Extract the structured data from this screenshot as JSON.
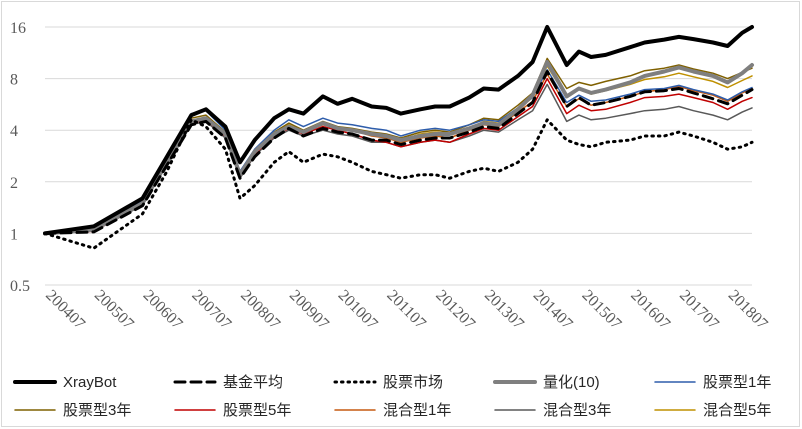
{
  "chart_data": {
    "type": "line",
    "title": "",
    "xlabel": "",
    "ylabel": "",
    "y_scale": "log2",
    "ylim": [
      0.5,
      16
    ],
    "y_ticks": [
      0.5,
      1,
      2,
      4,
      8,
      16
    ],
    "y_tick_labels": [
      "0.5",
      "1",
      "2",
      "4",
      "8",
      "16"
    ],
    "x_range": [
      2004.5,
      2019.0
    ],
    "x_tick_labels": [
      "200407",
      "200507",
      "200607",
      "200707",
      "200807",
      "200907",
      "201007",
      "201107",
      "201207",
      "201307",
      "201407",
      "201507",
      "201607",
      "201707",
      "201807"
    ],
    "x_tick_values": [
      2004.5,
      2005.5,
      2006.5,
      2007.5,
      2008.5,
      2009.5,
      2010.5,
      2011.5,
      2012.5,
      2013.5,
      2014.5,
      2015.5,
      2016.5,
      2017.5,
      2018.5
    ],
    "grid": "horizontal",
    "legend_position": "bottom",
    "x": [
      2004.5,
      2005.5,
      2006.5,
      2007.0,
      2007.5,
      2007.8,
      2008.2,
      2008.5,
      2008.8,
      2009.2,
      2009.5,
      2009.8,
      2010.2,
      2010.5,
      2010.8,
      2011.2,
      2011.5,
      2011.8,
      2012.2,
      2012.5,
      2012.8,
      2013.2,
      2013.5,
      2013.8,
      2014.2,
      2014.5,
      2014.8,
      2015.2,
      2015.45,
      2015.7,
      2016.0,
      2016.5,
      2016.8,
      2017.2,
      2017.5,
      2017.8,
      2018.2,
      2018.5,
      2018.8,
      2019.0
    ],
    "series": [
      {
        "name": "XrayBot",
        "color": "#000000",
        "width": 4,
        "dash": "",
        "values": [
          1.0,
          1.1,
          1.6,
          2.8,
          4.9,
          5.3,
          4.2,
          2.6,
          3.5,
          4.7,
          5.3,
          5.0,
          6.3,
          5.7,
          6.1,
          5.5,
          5.4,
          5.0,
          5.3,
          5.5,
          5.5,
          6.2,
          7.0,
          6.9,
          8.3,
          10.0,
          16.0,
          9.6,
          11.5,
          10.7,
          11.0,
          12.2,
          13.0,
          13.5,
          14.0,
          13.6,
          13.0,
          12.4,
          14.8,
          16.0
        ]
      },
      {
        "name": "基金平均",
        "color": "#000000",
        "width": 3,
        "dash": "10,6",
        "values": [
          1.0,
          1.02,
          1.45,
          2.5,
          4.3,
          4.5,
          3.6,
          2.1,
          2.8,
          3.6,
          4.1,
          3.7,
          4.1,
          3.9,
          3.8,
          3.5,
          3.5,
          3.3,
          3.5,
          3.6,
          3.6,
          3.9,
          4.2,
          4.1,
          5.0,
          5.8,
          8.8,
          5.5,
          6.2,
          5.6,
          5.8,
          6.3,
          6.7,
          6.8,
          7.0,
          6.6,
          6.1,
          5.7,
          6.4,
          6.9
        ]
      },
      {
        "name": "股票市场",
        "color": "#000000",
        "width": 3,
        "dash": "1.5,5",
        "values": [
          1.0,
          0.82,
          1.3,
          2.3,
          4.6,
          4.2,
          3.1,
          1.6,
          1.9,
          2.6,
          3.0,
          2.6,
          2.9,
          2.8,
          2.6,
          2.3,
          2.2,
          2.1,
          2.2,
          2.2,
          2.1,
          2.3,
          2.4,
          2.3,
          2.6,
          3.1,
          4.6,
          3.5,
          3.3,
          3.2,
          3.4,
          3.5,
          3.7,
          3.7,
          3.9,
          3.7,
          3.4,
          3.1,
          3.2,
          3.4
        ]
      },
      {
        "name": "量化(10)",
        "color": "#7f7f7f",
        "width": 4,
        "dash": "",
        "values": [
          1.0,
          1.05,
          1.5,
          2.6,
          4.5,
          4.7,
          3.8,
          2.2,
          3.0,
          3.8,
          4.2,
          3.9,
          4.4,
          4.1,
          4.0,
          3.8,
          3.7,
          3.5,
          3.7,
          3.8,
          3.8,
          4.1,
          4.4,
          4.3,
          5.3,
          6.4,
          10.0,
          6.3,
          7.0,
          6.6,
          6.9,
          7.6,
          8.3,
          8.8,
          9.3,
          8.8,
          8.3,
          7.6,
          8.6,
          9.6
        ]
      },
      {
        "name": "股票型1年",
        "color": "#2e5dab",
        "width": 1.5,
        "dash": "",
        "values": [
          1.0,
          1.06,
          1.55,
          2.7,
          5.0,
          5.2,
          4.0,
          2.3,
          3.1,
          4.0,
          4.6,
          4.2,
          4.7,
          4.4,
          4.3,
          4.1,
          4.0,
          3.7,
          4.0,
          4.1,
          4.0,
          4.3,
          4.6,
          4.5,
          5.4,
          6.2,
          9.0,
          5.8,
          6.4,
          5.9,
          6.0,
          6.5,
          6.9,
          7.0,
          7.3,
          6.9,
          6.5,
          6.0,
          6.7,
          7.1
        ]
      },
      {
        "name": "股票型3年",
        "color": "#7f6000",
        "width": 1.5,
        "dash": "",
        "values": [
          1.0,
          1.05,
          1.52,
          2.65,
          4.7,
          4.9,
          3.9,
          2.25,
          3.0,
          3.9,
          4.4,
          4.0,
          4.5,
          4.2,
          4.1,
          3.9,
          3.8,
          3.6,
          3.9,
          4.0,
          3.9,
          4.3,
          4.7,
          4.6,
          5.6,
          6.6,
          10.5,
          7.0,
          7.6,
          7.3,
          7.7,
          8.3,
          8.9,
          9.2,
          9.6,
          9.1,
          8.6,
          8.0,
          8.7,
          9.2
        ]
      },
      {
        "name": "股票型5年",
        "color": "#c00000",
        "width": 1.5,
        "dash": "",
        "values": [
          1.0,
          1.03,
          1.48,
          2.55,
          4.4,
          4.6,
          3.7,
          2.15,
          2.9,
          3.7,
          4.1,
          3.8,
          4.2,
          4.0,
          3.8,
          3.5,
          3.4,
          3.2,
          3.4,
          3.5,
          3.4,
          3.8,
          4.1,
          4.0,
          4.8,
          5.5,
          8.0,
          5.0,
          5.6,
          5.2,
          5.3,
          5.8,
          6.2,
          6.3,
          6.5,
          6.2,
          5.8,
          5.3,
          5.9,
          6.2
        ]
      },
      {
        "name": "混合型1年",
        "color": "#c55a11",
        "width": 1.5,
        "dash": "",
        "values": [
          1.0,
          1.04,
          1.5,
          2.6,
          4.5,
          4.7,
          3.8,
          2.2,
          3.0,
          3.8,
          4.2,
          3.9,
          4.3,
          4.1,
          4.0,
          3.7,
          3.6,
          3.4,
          3.6,
          3.7,
          3.6,
          4.0,
          4.3,
          4.2,
          5.1,
          5.9,
          8.5,
          5.5,
          6.1,
          5.6,
          5.8,
          6.3,
          6.7,
          6.9,
          7.2,
          6.8,
          6.4,
          5.9,
          6.6,
          7.0
        ]
      },
      {
        "name": "混合型3年",
        "color": "#595959",
        "width": 1.5,
        "dash": "",
        "values": [
          1.0,
          1.03,
          1.46,
          2.5,
          4.3,
          4.5,
          3.6,
          2.1,
          2.85,
          3.6,
          4.0,
          3.7,
          4.0,
          3.8,
          3.7,
          3.4,
          3.4,
          3.2,
          3.4,
          3.5,
          3.4,
          3.7,
          4.0,
          3.9,
          4.6,
          5.2,
          7.4,
          4.5,
          4.9,
          4.6,
          4.7,
          5.0,
          5.2,
          5.3,
          5.5,
          5.2,
          4.9,
          4.6,
          5.1,
          5.4
        ]
      },
      {
        "name": "混合型5年",
        "color": "#bf9000",
        "width": 1.5,
        "dash": "",
        "values": [
          1.0,
          1.04,
          1.5,
          2.6,
          4.5,
          4.7,
          3.8,
          2.2,
          3.0,
          3.8,
          4.3,
          3.9,
          4.4,
          4.1,
          4.0,
          3.8,
          3.7,
          3.5,
          3.8,
          3.9,
          3.8,
          4.1,
          4.5,
          4.4,
          5.3,
          6.2,
          9.5,
          6.2,
          6.9,
          6.5,
          6.8,
          7.4,
          7.9,
          8.2,
          8.6,
          8.2,
          7.7,
          7.1,
          7.8,
          8.3
        ]
      }
    ]
  }
}
